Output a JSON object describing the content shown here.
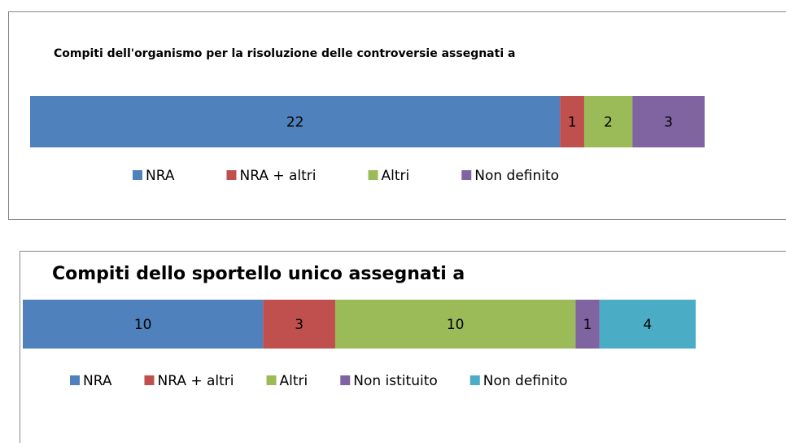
{
  "chart_data": [
    {
      "type": "bar",
      "title": "Compiti dell'organismo per la risoluzione delle controversie assegnati a",
      "series": [
        {
          "name": "NRA",
          "color": "#4f81bd",
          "values": [
            22
          ]
        },
        {
          "name": "NRA + altri",
          "color": "#c0504d",
          "values": [
            1
          ]
        },
        {
          "name": "Altri",
          "color": "#9bbb59",
          "values": [
            2
          ]
        },
        {
          "name": "Non definito",
          "color": "#8064a2",
          "values": [
            3
          ]
        }
      ],
      "legend": "bottom"
    },
    {
      "type": "bar",
      "title": "Compiti dello sportello unico assegnati a",
      "series": [
        {
          "name": "NRA",
          "color": "#4f81bd",
          "values": [
            10
          ]
        },
        {
          "name": "NRA + altri",
          "color": "#c0504d",
          "values": [
            3
          ]
        },
        {
          "name": "Altri",
          "color": "#9bbb59",
          "values": [
            10
          ]
        },
        {
          "name": "Non istituito",
          "color": "#8064a2",
          "values": [
            1
          ]
        },
        {
          "name": "Non definito",
          "color": "#4bacc6",
          "values": [
            4
          ]
        }
      ],
      "legend": "bottom"
    }
  ]
}
